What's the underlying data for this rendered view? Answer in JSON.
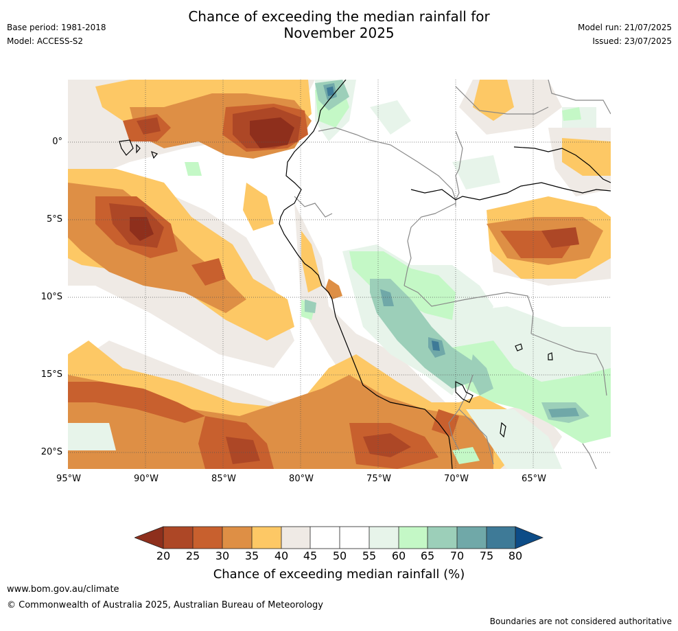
{
  "header": {
    "title_line1": "Chance of exceeding the median rainfall for",
    "title_line2": "November 2025",
    "base_period": "Base period: 1981-2018",
    "model": "Model: ACCESS-S2",
    "model_run": "Model run: 21/07/2025",
    "issued": "Issued: 23/07/2025"
  },
  "map": {
    "lat_ticks": [
      "0°",
      "5°S",
      "10°S",
      "15°S",
      "20°S"
    ],
    "lon_ticks": [
      "95°W",
      "90°W",
      "85°W",
      "80°W",
      "75°W",
      "70°W",
      "65°W"
    ],
    "colors": {
      "c20": "#8e2f1c",
      "c25": "#ad4726",
      "c30": "#c8602e",
      "c35": "#de8f45",
      "c40": "#fdc865",
      "c45": "#efeae5",
      "c50": "#ffffff",
      "c55": "#ffffff",
      "c60": "#e7f4ea",
      "c65": "#c4f8c6",
      "c70": "#9ccfb9",
      "c75": "#70a8a8",
      "c80": "#3e7a97",
      "c85": "#0d4c87"
    }
  },
  "colorbar": {
    "ticks": [
      "20",
      "25",
      "30",
      "35",
      "40",
      "45",
      "50",
      "55",
      "60",
      "65",
      "70",
      "75",
      "80"
    ],
    "label": "Chance of exceeding median rainfall (%)"
  },
  "footer": {
    "url": "www.bom.gov.au/climate",
    "copyright": "© Commonwealth of Australia 2025, Australian Bureau of Meteorology",
    "note": "Boundaries are not considered authoritative"
  }
}
